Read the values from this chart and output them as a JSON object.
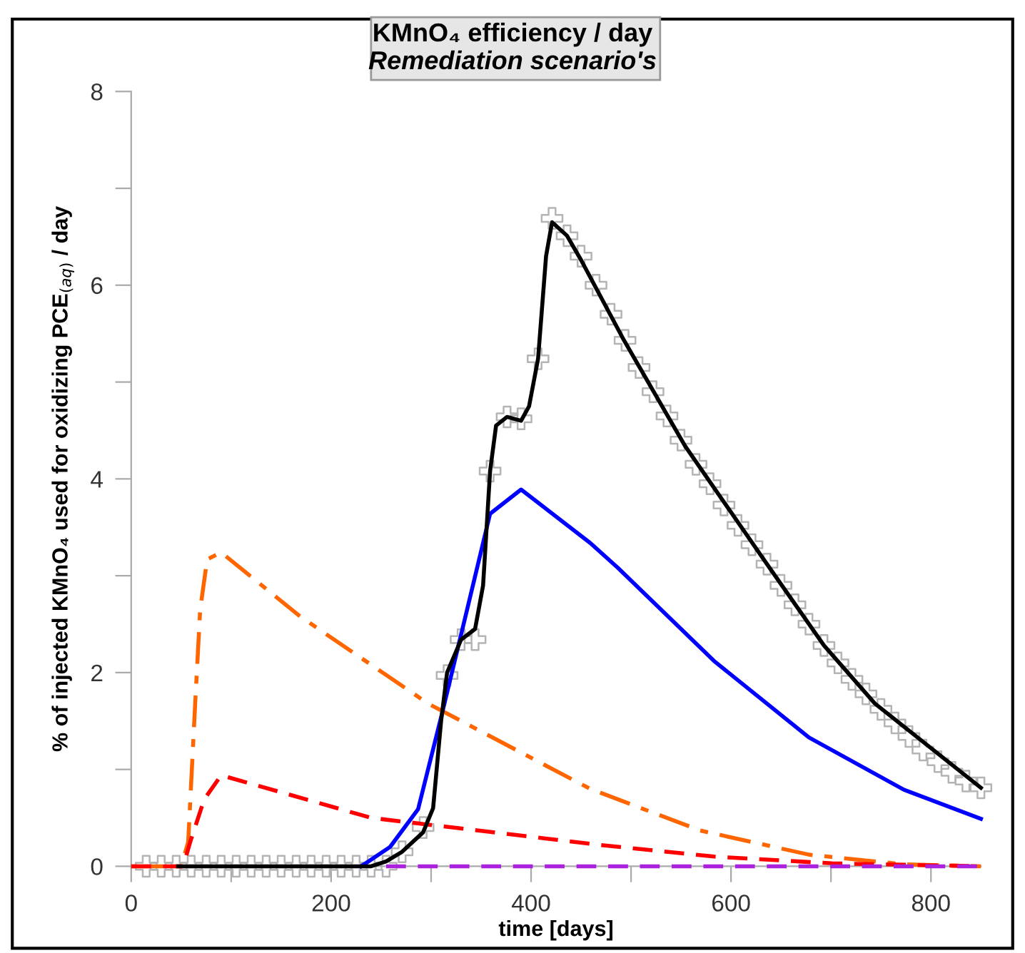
{
  "chart_data": {
    "type": "line",
    "title": "KMnO₄ efficiency / day",
    "subtitle": "Remediation scenario's",
    "xlabel": "time [days]",
    "ylabel": "% of injected KMnO₄ used for oxidizing PCE$_{(aq)}$ / day",
    "xlim": [
      0,
      850
    ],
    "ylim": [
      0,
      8
    ],
    "xticks": [
      0,
      {
        "value": 100,
        "label": null
      },
      200,
      {
        "value": 300,
        "label": null
      },
      400,
      {
        "value": 500,
        "label": null
      },
      600,
      {
        "value": 700,
        "label": null
      },
      800
    ],
    "yticks": [
      0,
      {
        "value": 1,
        "label": null
      },
      2,
      {
        "value": 3,
        "label": null
      },
      4,
      {
        "value": 5,
        "label": null
      },
      6,
      {
        "value": 7,
        "label": null
      },
      8
    ],
    "grid": false,
    "legend": false,
    "series": [
      {
        "color": "#ff6600",
        "line_style": "dashdot",
        "x": [
          0,
          50,
          57,
          64,
          69,
          76,
          90,
          169,
          297,
          459,
          569,
          678,
          773,
          850
        ],
        "values": [
          0,
          0,
          0.25,
          1.68,
          2.65,
          3.17,
          3.24,
          2.58,
          1.68,
          0.8,
          0.37,
          0.12,
          0.02,
          0
        ]
      },
      {
        "color": "#ff0000",
        "line_style": "dashed",
        "x": [
          0,
          52,
          59,
          73,
          90,
          240,
          469,
          583,
          701,
          850
        ],
        "values": [
          0,
          0,
          0.25,
          0.69,
          0.94,
          0.5,
          0.22,
          0.1,
          0.03,
          0
        ]
      },
      {
        "color": "#aa22dd",
        "line_style": "dashed",
        "x": [
          255,
          850
        ],
        "values": [
          0,
          0
        ]
      },
      {
        "color": "#0000ff",
        "line_style": "solid",
        "x": [
          230,
          259,
          287,
          311,
          336,
          359,
          390,
          459,
          487,
          583,
          678,
          773,
          850
        ],
        "values": [
          0,
          0.2,
          0.59,
          1.58,
          2.65,
          3.64,
          3.89,
          3.34,
          3.08,
          2.12,
          1.33,
          0.79,
          0.49
        ]
      },
      {
        "color": "#000000",
        "line_style": "solid",
        "x": [
          47,
          240,
          255,
          271,
          292,
          302,
          310,
          316,
          330,
          344,
          352,
          359,
          365,
          376,
          390,
          398,
          407,
          415,
          421,
          436,
          450,
          493,
          554,
          636,
          693,
          744,
          850
        ],
        "values": [
          0,
          0,
          0.05,
          0.15,
          0.35,
          0.6,
          1.5,
          2.0,
          2.34,
          2.45,
          2.9,
          4.08,
          4.55,
          4.64,
          4.6,
          4.75,
          5.24,
          6.3,
          6.65,
          6.51,
          6.26,
          5.43,
          4.34,
          3.12,
          2.28,
          1.68,
          0.81
        ]
      },
      {
        "type": "scatter",
        "marker": "cross",
        "color": "#b4b4b4",
        "x": [
          15,
          30,
          45,
          60,
          75,
          90,
          105,
          120,
          135,
          150,
          165,
          180,
          195,
          210,
          225,
          240,
          255,
          271,
          292,
          316,
          330,
          344,
          359,
          376,
          390,
          407,
          421,
          436,
          450,
          465,
          480,
          494,
          508,
          522,
          536,
          550,
          565,
          579,
          593,
          607,
          621,
          636,
          650,
          664,
          678,
          693,
          707,
          721,
          735,
          750,
          764,
          778,
          792,
          807,
          821,
          835,
          850
        ],
        "values": [
          0,
          0,
          0,
          0,
          0,
          0,
          0,
          0,
          0,
          0,
          0,
          0,
          0,
          0,
          0,
          0,
          0,
          0.15,
          0.4,
          1.97,
          2.34,
          2.34,
          4.08,
          4.64,
          4.62,
          5.24,
          6.69,
          6.51,
          6.3,
          6.0,
          5.7,
          5.43,
          5.15,
          4.9,
          4.65,
          4.4,
          4.15,
          3.95,
          3.73,
          3.52,
          3.32,
          3.12,
          2.9,
          2.7,
          2.5,
          2.28,
          2.1,
          1.93,
          1.78,
          1.62,
          1.48,
          1.34,
          1.2,
          1.08,
          0.97,
          0.88,
          0.81
        ]
      }
    ]
  }
}
